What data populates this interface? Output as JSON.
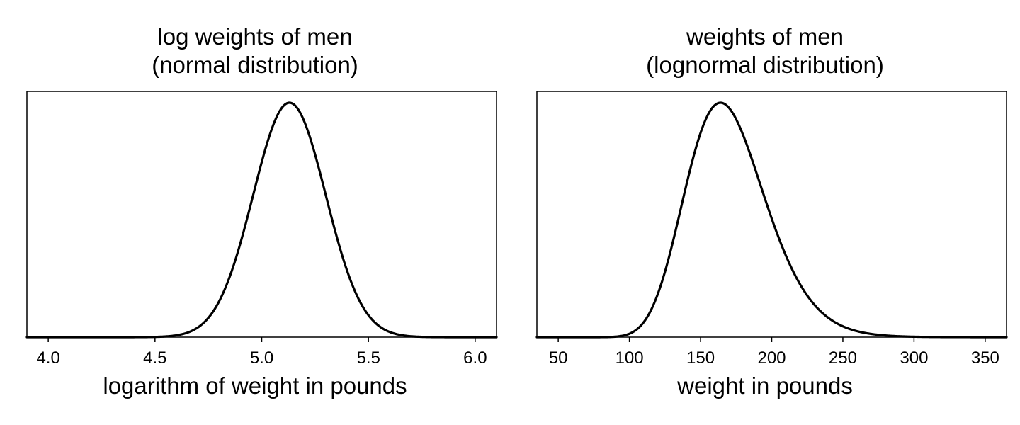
{
  "chart_data": [
    {
      "type": "line",
      "title": [
        "log weights of men",
        "(normal distribution)"
      ],
      "xlabel": "logarithm of weight in pounds",
      "ylabel": "",
      "xlim": [
        3.9,
        6.1
      ],
      "xticks": [
        "4.0",
        "4.5",
        "5.0",
        "5.5",
        "6.0"
      ],
      "yticks": [],
      "grid": false,
      "series": [
        {
          "distribution": "normal",
          "mean": 5.13,
          "sd": 0.17,
          "color": "#000000"
        }
      ]
    },
    {
      "type": "line",
      "title": [
        "weights of men",
        "(lognormal distribution)"
      ],
      "xlabel": "weight in pounds",
      "ylabel": "",
      "xlim": [
        35,
        365
      ],
      "xticks": [
        "50",
        "100",
        "150",
        "200",
        "250",
        "300",
        "350"
      ],
      "yticks": [],
      "grid": false,
      "series": [
        {
          "distribution": "lognormal",
          "mode": 164,
          "log_sd": 0.17,
          "color": "#000000"
        }
      ]
    }
  ]
}
